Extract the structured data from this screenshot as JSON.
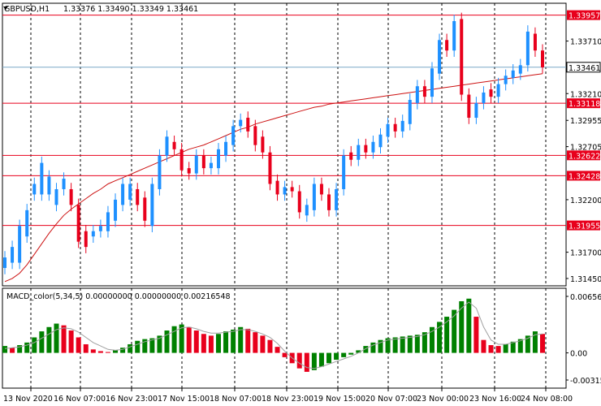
{
  "header": {
    "symbol": "GBPUSD,H1",
    "ohlc": "1.33376 1.33490 1.33349 1.33461"
  },
  "macd_header": {
    "label": "MACD_color(5,34,5) 0.00000000 0.00000000 0.00216548"
  },
  "colors": {
    "bull": "#1e90ff",
    "bear": "#e8001c",
    "level_line": "#e8001c",
    "ma_line": "#cc1111",
    "grid": "#000000",
    "macd_up": "#008000",
    "macd_down": "#e8001c",
    "signal": "#a0a0a0",
    "current_price_line": "#7aa7c7"
  },
  "chart_data": [
    {
      "type": "candlestick",
      "symbol": "GBPUSD",
      "timeframe": "H1",
      "ylim": [
        1.3138,
        1.3407
      ],
      "y_ticks": [
        "1.33957",
        "1.33710",
        "1.33461",
        "1.33210",
        "1.32955",
        "1.32705",
        "1.32622",
        "1.32428",
        "1.32200",
        "1.31955",
        "1.31700",
        "1.31450"
      ],
      "x_ticks": [
        "13 Nov 2020",
        "16 Nov 07:00",
        "16 Nov 23:00",
        "17 Nov 15:00",
        "18 Nov 07:00",
        "18 Nov 23:00",
        "19 Nov 15:00",
        "20 Nov 07:00",
        "23 Nov 00:00",
        "23 Nov 16:00",
        "24 Nov 08:00"
      ],
      "levels": [
        "1.33957",
        "1.33118",
        "1.32622",
        "1.32428",
        "1.31955"
      ],
      "current_price": "1.33461",
      "close_path": [
        [
          1.3165,
          1.3155
        ],
        [
          1.3175,
          1.316
        ],
        [
          1.3195,
          1.316
        ],
        [
          1.321,
          1.3185
        ],
        [
          1.3235,
          1.3225
        ],
        [
          1.3255,
          1.3225
        ],
        [
          1.3242,
          1.3225
        ],
        [
          1.323,
          1.3215
        ],
        [
          1.324,
          1.323
        ],
        [
          1.3215,
          1.323
        ],
        [
          1.318,
          1.3215
        ],
        [
          1.3175,
          1.319
        ],
        [
          1.319,
          1.3185
        ],
        [
          1.3195,
          1.319
        ],
        [
          1.3208,
          1.319
        ],
        [
          1.322,
          1.32
        ],
        [
          1.3235,
          1.3215
        ],
        [
          1.3235,
          1.322
        ],
        [
          1.3215,
          1.323
        ],
        [
          1.32,
          1.3222
        ],
        [
          1.3235,
          1.3195
        ],
        [
          1.3262,
          1.323
        ],
        [
          1.328,
          1.3262
        ],
        [
          1.3268,
          1.3275
        ],
        [
          1.3248,
          1.3268
        ],
        [
          1.3245,
          1.325
        ],
        [
          1.3262,
          1.3245
        ],
        [
          1.325,
          1.3262
        ],
        [
          1.3255,
          1.325
        ],
        [
          1.3268,
          1.325
        ],
        [
          1.3275,
          1.3262
        ],
        [
          1.329,
          1.3272
        ],
        [
          1.3296,
          1.329
        ],
        [
          1.3285,
          1.3298
        ],
        [
          1.3272,
          1.329
        ],
        [
          1.3265,
          1.328
        ],
        [
          1.3235,
          1.3265
        ],
        [
          1.3225,
          1.3238
        ],
        [
          1.3232,
          1.3225
        ],
        [
          1.3228,
          1.3232
        ],
        [
          1.3208,
          1.3228
        ],
        [
          1.3215,
          1.3205
        ],
        [
          1.3235,
          1.321
        ],
        [
          1.3225,
          1.3235
        ],
        [
          1.321,
          1.3225
        ],
        [
          1.323,
          1.321
        ],
        [
          1.3262,
          1.323
        ],
        [
          1.3258,
          1.3265
        ],
        [
          1.3272,
          1.3258
        ],
        [
          1.3265,
          1.3272
        ],
        [
          1.3275,
          1.3265
        ],
        [
          1.3282,
          1.327
        ],
        [
          1.3292,
          1.328
        ],
        [
          1.3285,
          1.3292
        ],
        [
          1.3295,
          1.3285
        ],
        [
          1.3315,
          1.3292
        ],
        [
          1.3328,
          1.3312
        ],
        [
          1.3318,
          1.3328
        ],
        [
          1.3345,
          1.3318
        ],
        [
          1.3372,
          1.334
        ],
        [
          1.3362,
          1.3372
        ],
        [
          1.339,
          1.3362
        ],
        [
          1.332,
          1.3392
        ],
        [
          1.3298,
          1.332
        ],
        [
          1.3312,
          1.3298
        ],
        [
          1.3322,
          1.3312
        ],
        [
          1.3318,
          1.3325
        ],
        [
          1.333,
          1.3318
        ],
        [
          1.3338,
          1.333
        ],
        [
          1.3343,
          1.3336
        ],
        [
          1.3348,
          1.334
        ],
        [
          1.338,
          1.3348
        ],
        [
          1.3362,
          1.3378
        ],
        [
          1.3346,
          1.3362
        ]
      ],
      "ma_path": [
        1.3142,
        1.3145,
        1.315,
        1.3158,
        1.3168,
        1.3178,
        1.3188,
        1.3197,
        1.3205,
        1.3211,
        1.3216,
        1.3221,
        1.3226,
        1.323,
        1.3235,
        1.3238,
        1.3241,
        1.3244,
        1.3247,
        1.325,
        1.3253,
        1.3256,
        1.3259,
        1.3262,
        1.3265,
        1.3268,
        1.327,
        1.3272,
        1.3275,
        1.3278,
        1.3281,
        1.3284,
        1.3287,
        1.3289,
        1.3292,
        1.3294,
        1.3296,
        1.3298,
        1.33,
        1.3302,
        1.3304,
        1.3306,
        1.3308,
        1.3309,
        1.3311,
        1.3312,
        1.3313,
        1.3314,
        1.3315,
        1.3316,
        1.3317,
        1.3318,
        1.3319,
        1.332,
        1.3321,
        1.3322,
        1.3323,
        1.3324,
        1.3325,
        1.3326,
        1.3327,
        1.3328,
        1.3329,
        1.333,
        1.3331,
        1.3332,
        1.3333,
        1.3334,
        1.3335,
        1.3336,
        1.3337,
        1.3338,
        1.3339,
        1.334
      ]
    },
    {
      "type": "bar",
      "indicator": "MACD_color(5,34,5)",
      "ylim": [
        -0.003152,
        0.0065637
      ],
      "y_ticks": [
        "0.0065637",
        "0.00",
        "-0.003152"
      ],
      "histogram": [
        0.0008,
        0.0006,
        0.0009,
        0.0012,
        0.0018,
        0.0025,
        0.003,
        0.0034,
        0.0032,
        0.0026,
        0.0018,
        0.001,
        0.0004,
        0.0002,
        0.0001,
        0.0003,
        0.0006,
        0.001,
        0.0014,
        0.0016,
        0.0017,
        0.002,
        0.0026,
        0.0031,
        0.0033,
        0.003,
        0.0026,
        0.0022,
        0.002,
        0.0022,
        0.0025,
        0.0027,
        0.003,
        0.0028,
        0.0024,
        0.002,
        0.0015,
        0.0007,
        -0.0005,
        -0.0012,
        -0.0018,
        -0.0022,
        -0.002,
        -0.0016,
        -0.0012,
        -0.0008,
        -0.0005,
        -0.0002,
        0.0003,
        0.0008,
        0.0012,
        0.0015,
        0.0017,
        0.0018,
        0.0019,
        0.002,
        0.0021,
        0.0024,
        0.003,
        0.0036,
        0.0042,
        0.005,
        0.006,
        0.0063,
        0.0042,
        0.0015,
        0.0009,
        0.0008,
        0.001,
        0.0013,
        0.0016,
        0.002,
        0.0025,
        0.0022
      ],
      "signal": [
        0.0005,
        0.0006,
        0.0007,
        0.0009,
        0.0012,
        0.0017,
        0.0022,
        0.0027,
        0.0029,
        0.0028,
        0.0024,
        0.0018,
        0.0012,
        0.0008,
        0.0004,
        0.0003,
        0.0004,
        0.0007,
        0.001,
        0.0013,
        0.0015,
        0.0017,
        0.0021,
        0.0025,
        0.0029,
        0.003,
        0.0028,
        0.0025,
        0.0023,
        0.0023,
        0.0024,
        0.0025,
        0.0027,
        0.0027,
        0.0025,
        0.0022,
        0.0018,
        0.0011,
        0.0002,
        -0.0006,
        -0.0012,
        -0.0017,
        -0.0018,
        -0.0016,
        -0.0013,
        -0.001,
        -0.0007,
        -0.0004,
        0.0,
        0.0005,
        0.0009,
        0.0012,
        0.0015,
        0.0016,
        0.0017,
        0.0018,
        0.0019,
        0.0021,
        0.0025,
        0.003,
        0.0036,
        0.0043,
        0.0052,
        0.0059,
        0.0052,
        0.003,
        0.0015,
        0.001,
        0.001,
        0.0012,
        0.0014,
        0.0017,
        0.0021,
        0.0022
      ]
    }
  ]
}
